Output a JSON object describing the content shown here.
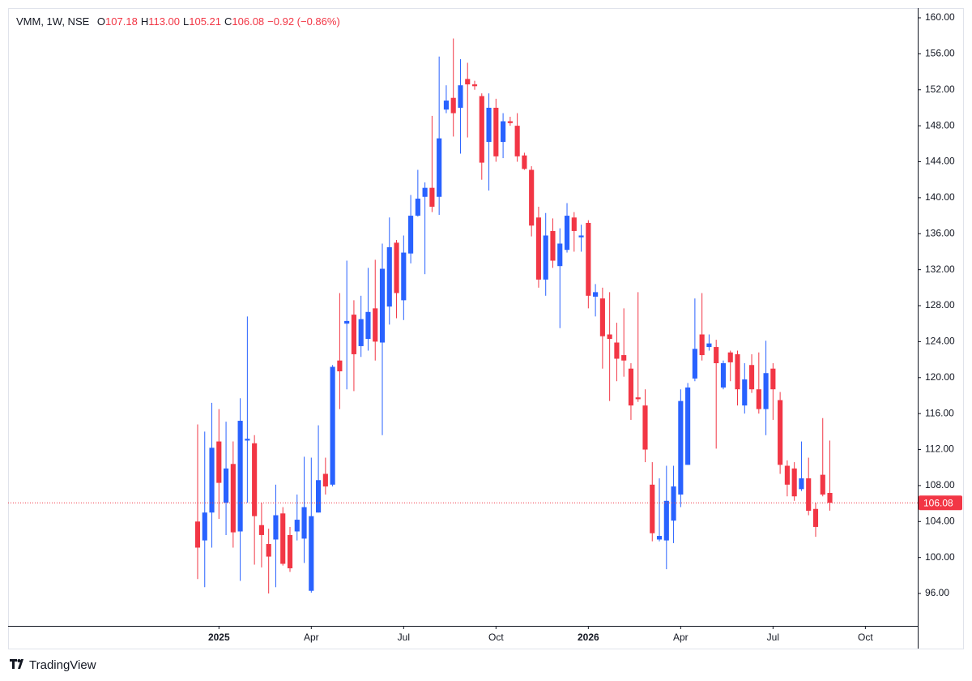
{
  "chart_data": {
    "type": "candlestick",
    "header": {
      "title": "VMM, 1W, NSE",
      "ohlc": [
        {
          "key": "O",
          "value": "107.18"
        },
        {
          "key": "H",
          "value": "113.00"
        },
        {
          "key": "L",
          "value": "105.21"
        },
        {
          "key": "C",
          "value": "106.08"
        }
      ],
      "change": "−0.92 (−0.86%)"
    },
    "up_color": "#2962ff",
    "down_color": "#f23645",
    "open": [
      104.0,
      101.9,
      105.0,
      112.9,
      106.1,
      110.4,
      102.9,
      113.0,
      112.7,
      103.6,
      101.5,
      102.0,
      104.9,
      102.5,
      102.9,
      102.1,
      96.3,
      105.0,
      109.3,
      108.1,
      121.9,
      126.0,
      127.0,
      123.5,
      124.3,
      127.7,
      123.9,
      127.9,
      135.0,
      128.6,
      133.8,
      138.0,
      140.1,
      141.1,
      140.1,
      149.8,
      151.1,
      150.0,
      153.2,
      152.6,
      151.3,
      146.2,
      150.0,
      146.2,
      148.5,
      148.0,
      144.7,
      143.1,
      137.8,
      130.9,
      136.3,
      132.4,
      134.2,
      137.8,
      135.6,
      137.2,
      129.0,
      128.8,
      124.8,
      123.9,
      122.5,
      121.0,
      117.8,
      116.9,
      108.1,
      102.0,
      101.9,
      104.1,
      107.0,
      110.3,
      119.9,
      124.8,
      123.4,
      123.4,
      118.9,
      122.8,
      122.6,
      116.9,
      121.4,
      118.7,
      116.5,
      121.0,
      117.5,
      110.2,
      109.9,
      107.6,
      108.8,
      105.4,
      109.2,
      107.18
    ],
    "high": [
      114.8,
      114.0,
      117.2,
      116.5,
      115.1,
      112.9,
      117.7,
      126.8,
      113.6,
      106.1,
      103.2,
      108.1,
      105.6,
      103.4,
      107.0,
      111.2,
      111.1,
      114.7,
      111.1,
      121.4,
      129.4,
      133.0,
      128.6,
      129.1,
      132.2,
      133.1,
      134.9,
      137.8,
      135.3,
      135.8,
      140.3,
      143.1,
      141.7,
      149.1,
      155.7,
      152.5,
      157.7,
      155.4,
      155.0,
      153.0,
      151.6,
      151.6,
      151.0,
      149.4,
      149.0,
      149.4,
      145.0,
      143.5,
      139.0,
      138.3,
      137.7,
      136.6,
      139.4,
      138.4,
      137.0,
      137.5,
      130.4,
      130.0,
      129.5,
      126.1,
      127.7,
      121.6,
      129.5,
      118.7,
      110.6,
      108.8,
      110.2,
      110.2,
      118.7,
      119.4,
      128.8,
      129.4,
      124.8,
      124.2,
      121.9,
      123.0,
      123.0,
      121.6,
      122.6,
      122.8,
      124.1,
      121.6,
      118.4,
      110.8,
      110.6,
      112.9,
      111.1,
      106.1,
      115.5,
      113.0
    ],
    "low": [
      97.6,
      96.7,
      101.1,
      104.3,
      102.5,
      101.1,
      97.4,
      106.1,
      99.2,
      98.9,
      96.0,
      96.7,
      99.1,
      98.4,
      101.9,
      99.4,
      96.1,
      105.0,
      107.0,
      107.9,
      116.5,
      118.7,
      118.5,
      122.3,
      123.0,
      121.9,
      113.6,
      125.9,
      126.6,
      126.4,
      132.7,
      137.9,
      131.5,
      138.4,
      138.1,
      149.4,
      146.8,
      144.9,
      146.7,
      152.0,
      142.0,
      140.8,
      144.0,
      144.4,
      148.0,
      144.0,
      143.1,
      135.7,
      130.0,
      129.1,
      132.2,
      125.5,
      133.9,
      134.0,
      134.0,
      127.7,
      126.8,
      121.0,
      117.4,
      119.6,
      120.1,
      115.3,
      117.3,
      110.6,
      101.8,
      101.8,
      98.7,
      101.6,
      105.6,
      110.3,
      119.6,
      121.9,
      123.0,
      112.1,
      118.7,
      119.6,
      116.9,
      116.0,
      118.3,
      116.0,
      113.6,
      115.3,
      109.3,
      106.8,
      106.3,
      107.4,
      104.7,
      102.3,
      106.8,
      105.21
    ],
    "close": [
      101.1,
      105.0,
      112.2,
      108.3,
      109.9,
      102.8,
      115.2,
      113.2,
      104.6,
      102.5,
      100.1,
      104.7,
      99.3,
      98.8,
      104.2,
      105.6,
      104.6,
      108.6,
      107.9,
      121.2,
      120.7,
      126.3,
      122.6,
      126.5,
      127.3,
      124.0,
      132.1,
      134.5,
      129.4,
      133.9,
      138.0,
      139.9,
      141.1,
      139.0,
      146.6,
      150.8,
      149.4,
      152.5,
      152.6,
      152.4,
      143.9,
      150.0,
      144.6,
      148.5,
      148.3,
      144.6,
      143.2,
      136.9,
      130.9,
      135.8,
      133.0,
      134.9,
      138.0,
      136.3,
      135.8,
      129.1,
      129.5,
      124.6,
      124.3,
      122.1,
      121.9,
      116.9,
      117.6,
      112.0,
      102.7,
      102.4,
      106.3,
      107.9,
      117.4,
      118.9,
      123.2,
      122.5,
      123.8,
      121.6,
      121.6,
      121.7,
      118.7,
      119.8,
      118.7,
      116.5,
      120.5,
      118.7,
      110.3,
      108.1,
      106.8,
      108.8,
      105.2,
      103.4,
      107.0,
      106.08
    ],
    "xlim": [
      -26.68,
      101.37
    ],
    "xticks": [
      {
        "value": 3,
        "label": "2025"
      },
      {
        "value": 16,
        "label": "Apr"
      },
      {
        "value": 29,
        "label": "Jul"
      },
      {
        "value": 42,
        "label": "Oct"
      },
      {
        "value": 55,
        "label": "2026"
      },
      {
        "value": 68,
        "label": "Apr"
      },
      {
        "value": 81,
        "label": "Jul"
      },
      {
        "value": 94,
        "label": "Oct"
      }
    ],
    "ylim": [
      92.4,
      161.08
    ],
    "yticks": [
      {
        "value": 96,
        "label": "96.00"
      },
      {
        "value": 100,
        "label": "100.00"
      },
      {
        "value": 104,
        "label": "104.00"
      },
      {
        "value": 108,
        "label": "108.00"
      },
      {
        "value": 112,
        "label": "112.00"
      },
      {
        "value": 116,
        "label": "116.00"
      },
      {
        "value": 120,
        "label": "120.00"
      },
      {
        "value": 124,
        "label": "124.00"
      },
      {
        "value": 128,
        "label": "128.00"
      },
      {
        "value": 132,
        "label": "132.00"
      },
      {
        "value": 136,
        "label": "136.00"
      },
      {
        "value": 140,
        "label": "140.00"
      },
      {
        "value": 144,
        "label": "144.00"
      },
      {
        "value": 148,
        "label": "148.00"
      },
      {
        "value": 152,
        "label": "152.00"
      },
      {
        "value": 156,
        "label": "156.00"
      },
      {
        "value": 160,
        "label": "160.00"
      }
    ],
    "last_price": {
      "value": 106.08,
      "label": "106.08"
    },
    "brand": "TradingView"
  }
}
